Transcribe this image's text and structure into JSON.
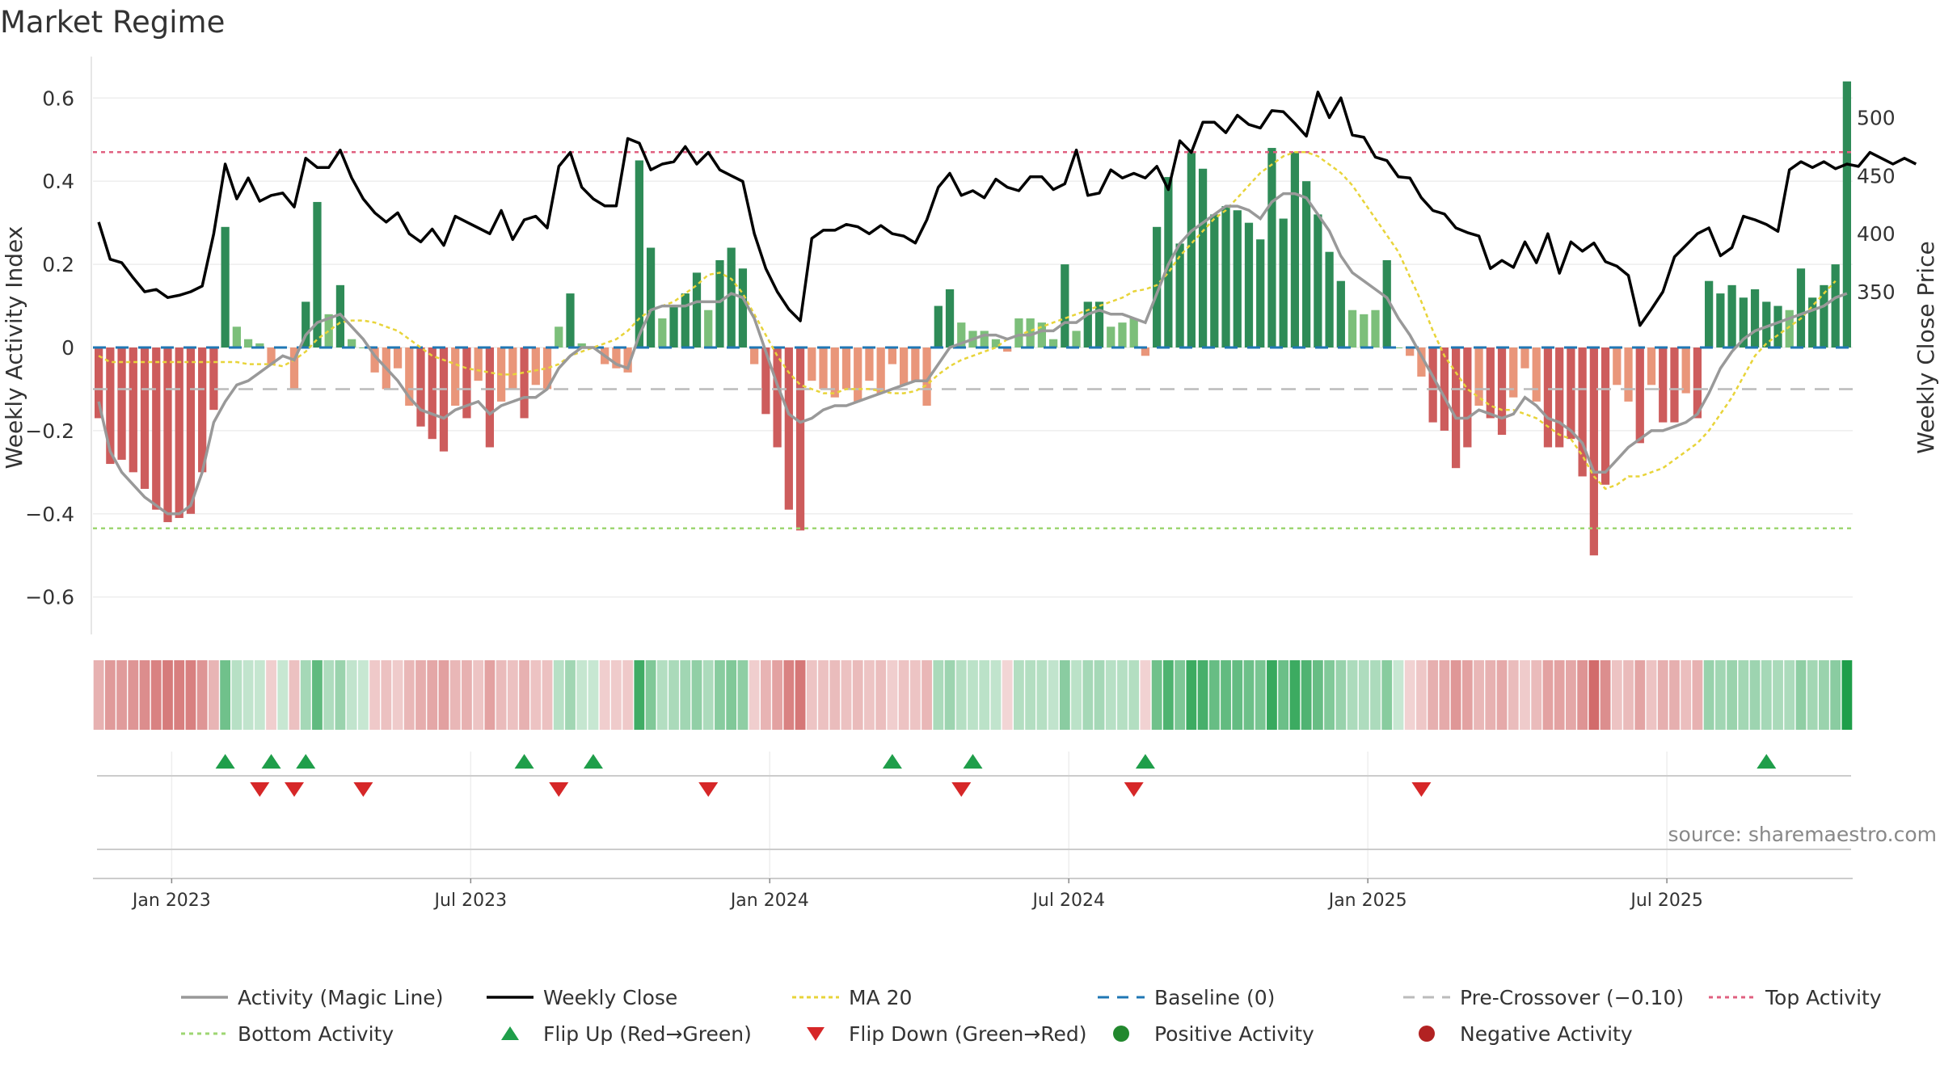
{
  "title": "Market Regime",
  "source": "source: sharemaestro.com",
  "colors": {
    "strong_green": "#2e8b57",
    "light_green": "#7cbf7a",
    "strong_red": "#cd5c5c",
    "light_red": "#e9967a",
    "activity_line": "#999999",
    "close_line": "#000000",
    "ma_line": "#e8d43a",
    "baseline": "#1f77b4",
    "pre_cross": "#bbbbbb",
    "top_line": "#e06080",
    "bottom_line": "#9ed672",
    "flip_up": "#1f9e4a",
    "flip_down": "#d62728"
  },
  "chart_data": {
    "type": "bar",
    "xlabel": "",
    "ylabel": "Weekly Activity Index",
    "y2label": "Weekly Close Price",
    "ylim": [
      -0.69,
      0.69
    ],
    "y_ticks": [
      "−0.6",
      "−0.4",
      "−0.2",
      "0",
      "0.2",
      "0.4",
      "0.6"
    ],
    "y2_ticks": [
      "350",
      "400",
      "450",
      "500"
    ],
    "y2_tick_values": [
      350,
      400,
      450,
      500
    ],
    "x_ticks": [
      "Jan 2023",
      "Jul 2023",
      "Jan 2024",
      "Jul 2024",
      "Jan 2025",
      "Jul 2025"
    ],
    "x_tick_weeks": [
      6,
      32,
      58,
      84,
      110,
      136
    ],
    "levels": {
      "baseline": 0,
      "pre_crossover": -0.1,
      "top_activity": 0.47,
      "bottom_activity": -0.435
    },
    "activity": [
      -0.17,
      -0.28,
      -0.27,
      -0.3,
      -0.34,
      -0.39,
      -0.42,
      -0.41,
      -0.4,
      -0.3,
      -0.15,
      0.29,
      0.05,
      0.02,
      0.01,
      -0.04,
      0,
      -0.1,
      0.11,
      0.35,
      0.08,
      0.15,
      0.02,
      0,
      -0.06,
      -0.1,
      -0.05,
      -0.14,
      -0.19,
      -0.22,
      -0.25,
      -0.14,
      -0.17,
      -0.08,
      -0.24,
      -0.13,
      -0.1,
      -0.17,
      -0.09,
      -0.1,
      0.05,
      0.13,
      0.01,
      0,
      -0.04,
      -0.05,
      -0.06,
      0.45,
      0.24,
      0.07,
      0.1,
      0.13,
      0.18,
      0.09,
      0.21,
      0.24,
      0.19,
      -0.04,
      -0.16,
      -0.24,
      -0.39,
      -0.44,
      -0.08,
      -0.1,
      -0.12,
      -0.1,
      -0.13,
      -0.08,
      -0.11,
      -0.04,
      -0.09,
      -0.08,
      -0.14,
      0.1,
      0.14,
      0.06,
      0.04,
      0.04,
      0.02,
      -0.01,
      0.07,
      0.07,
      0.06,
      0.02,
      0.2,
      0.04,
      0.11,
      0.11,
      0.05,
      0.06,
      0.07,
      -0.02,
      0.29,
      0.41,
      0.25,
      0.47,
      0.43,
      0.32,
      0.34,
      0.33,
      0.3,
      0.26,
      0.48,
      0.31,
      0.47,
      0.4,
      0.32,
      0.23,
      0.16,
      0.09,
      0.08,
      0.09,
      0.21,
      0,
      -0.02,
      -0.07,
      -0.18,
      -0.2,
      -0.29,
      -0.24,
      -0.14,
      -0.17,
      -0.21,
      -0.12,
      -0.05,
      -0.13,
      -0.24,
      -0.24,
      -0.22,
      -0.31,
      -0.5,
      -0.33,
      -0.09,
      -0.13,
      -0.23,
      -0.09,
      -0.18,
      -0.18,
      -0.11,
      -0.17,
      0.16,
      0.13,
      0.15,
      0.12,
      0.14,
      0.11,
      0.1,
      0.09,
      0.19,
      0.12,
      0.15,
      0.2,
      0.64
    ],
    "magic_line": [
      -0.13,
      -0.25,
      -0.3,
      -0.33,
      -0.36,
      -0.38,
      -0.4,
      -0.4,
      -0.38,
      -0.3,
      -0.18,
      -0.13,
      -0.09,
      -0.08,
      -0.06,
      -0.04,
      -0.02,
      -0.03,
      0.03,
      0.06,
      0.07,
      0.08,
      0.05,
      0.02,
      -0.02,
      -0.05,
      -0.08,
      -0.12,
      -0.15,
      -0.16,
      -0.17,
      -0.15,
      -0.14,
      -0.13,
      -0.16,
      -0.14,
      -0.13,
      -0.12,
      -0.12,
      -0.1,
      -0.05,
      -0.02,
      0,
      0,
      -0.02,
      -0.04,
      -0.05,
      0.03,
      0.09,
      0.1,
      0.1,
      0.1,
      0.11,
      0.11,
      0.11,
      0.13,
      0.12,
      0.07,
      -0.01,
      -0.09,
      -0.16,
      -0.18,
      -0.17,
      -0.15,
      -0.14,
      -0.14,
      -0.13,
      -0.12,
      -0.11,
      -0.1,
      -0.09,
      -0.08,
      -0.08,
      -0.04,
      0,
      0.01,
      0.02,
      0.03,
      0.03,
      0.02,
      0.03,
      0.03,
      0.04,
      0.04,
      0.06,
      0.06,
      0.08,
      0.09,
      0.08,
      0.08,
      0.07,
      0.06,
      0.13,
      0.2,
      0.25,
      0.28,
      0.3,
      0.32,
      0.34,
      0.34,
      0.33,
      0.31,
      0.35,
      0.37,
      0.37,
      0.36,
      0.32,
      0.28,
      0.22,
      0.18,
      0.16,
      0.14,
      0.12,
      0.07,
      0.03,
      -0.02,
      -0.07,
      -0.12,
      -0.17,
      -0.17,
      -0.15,
      -0.16,
      -0.17,
      -0.16,
      -0.12,
      -0.14,
      -0.17,
      -0.18,
      -0.2,
      -0.23,
      -0.3,
      -0.3,
      -0.27,
      -0.24,
      -0.22,
      -0.2,
      -0.2,
      -0.19,
      -0.18,
      -0.16,
      -0.11,
      -0.05,
      -0.01,
      0.02,
      0.04,
      0.05,
      0.06,
      0.07,
      0.08,
      0.09,
      0.1,
      0.12,
      0.13
    ],
    "weekly_close": [
      410,
      378,
      375,
      362,
      350,
      352,
      345,
      347,
      350,
      355,
      400,
      460,
      430,
      448,
      428,
      433,
      435,
      423,
      465,
      457,
      457,
      472,
      448,
      430,
      418,
      410,
      418,
      400,
      393,
      404,
      390,
      415,
      410,
      405,
      400,
      420,
      395,
      412,
      415,
      405,
      458,
      470,
      440,
      430,
      424,
      424,
      482,
      478,
      455,
      460,
      462,
      475,
      460,
      470,
      455,
      450,
      445,
      400,
      370,
      350,
      335,
      325,
      396,
      403,
      403,
      408,
      406,
      400,
      407,
      400,
      398,
      392,
      412,
      440,
      452,
      433,
      437,
      431,
      447,
      440,
      437,
      449,
      449,
      438,
      443,
      472,
      433,
      435,
      455,
      448,
      452,
      448,
      458,
      438,
      480,
      470,
      496,
      496,
      487,
      502,
      494,
      491,
      506,
      505,
      495,
      484,
      522,
      500,
      517,
      485,
      483,
      466,
      463,
      449,
      448,
      431,
      420,
      417,
      405,
      401,
      398,
      370,
      377,
      371,
      393,
      375,
      400,
      366,
      393,
      385,
      392,
      376,
      372,
      364,
      321,
      335,
      350,
      380,
      390,
      400,
      405,
      381,
      388,
      415,
      412,
      408,
      402,
      455,
      462,
      457,
      462,
      456,
      460,
      458,
      470,
      465,
      460,
      465,
      460
    ],
    "ma20": [
      -0.02,
      -0.035,
      -0.035,
      -0.035,
      -0.035,
      -0.035,
      -0.035,
      -0.035,
      -0.035,
      -0.035,
      -0.035,
      -0.035,
      -0.035,
      -0.04,
      -0.04,
      -0.04,
      -0.045,
      -0.03,
      -0.01,
      0.02,
      0.04,
      0.06,
      0.065,
      0.065,
      0.06,
      0.05,
      0.04,
      0.02,
      0,
      -0.02,
      -0.03,
      -0.04,
      -0.05,
      -0.055,
      -0.06,
      -0.065,
      -0.065,
      -0.06,
      -0.055,
      -0.05,
      -0.04,
      -0.02,
      -0.01,
      0,
      0.01,
      0.02,
      0.04,
      0.07,
      0.09,
      0.1,
      0.11,
      0.13,
      0.15,
      0.175,
      0.18,
      0.165,
      0.13,
      0.08,
      0.03,
      -0.02,
      -0.06,
      -0.09,
      -0.1,
      -0.11,
      -0.11,
      -0.1,
      -0.1,
      -0.1,
      -0.105,
      -0.11,
      -0.11,
      -0.105,
      -0.09,
      -0.065,
      -0.045,
      -0.03,
      -0.02,
      -0.01,
      0,
      0.02,
      0.03,
      0.04,
      0.05,
      0.06,
      0.07,
      0.08,
      0.09,
      0.1,
      0.11,
      0.12,
      0.135,
      0.14,
      0.15,
      0.18,
      0.22,
      0.25,
      0.28,
      0.31,
      0.33,
      0.36,
      0.39,
      0.42,
      0.44,
      0.46,
      0.47,
      0.47,
      0.46,
      0.44,
      0.42,
      0.39,
      0.35,
      0.31,
      0.27,
      0.23,
      0.17,
      0.11,
      0.04,
      -0.02,
      -0.06,
      -0.1,
      -0.12,
      -0.14,
      -0.15,
      -0.15,
      -0.16,
      -0.17,
      -0.19,
      -0.21,
      -0.22,
      -0.26,
      -0.31,
      -0.34,
      -0.33,
      -0.31,
      -0.31,
      -0.3,
      -0.29,
      -0.27,
      -0.25,
      -0.23,
      -0.2,
      -0.16,
      -0.12,
      -0.07,
      -0.02,
      0.01,
      0.03,
      0.05,
      0.07,
      0.1,
      0.13,
      0.16
    ],
    "flip_up_weeks": [
      11,
      15,
      18,
      37,
      43,
      69,
      76,
      91,
      145
    ],
    "flip_down_weeks": [
      14,
      17,
      23,
      40,
      53,
      75,
      90,
      115
    ]
  },
  "legend": [
    {
      "label": "Activity (Magic Line)",
      "icon": "solid-gray-line"
    },
    {
      "label": "Weekly Close",
      "icon": "solid-black-line"
    },
    {
      "label": "MA 20",
      "icon": "dotted-yellow-line"
    },
    {
      "label": "Baseline (0)",
      "icon": "dashed-blue-line"
    },
    {
      "label": "Pre-Crossover (−0.10)",
      "icon": "dashed-gray-line"
    },
    {
      "label": "Top Activity",
      "icon": "dotted-red-line"
    },
    {
      "label": "Bottom Activity",
      "icon": "dotted-green-line"
    },
    {
      "label": "Flip Up (Red→Green)",
      "icon": "green-triangle-up"
    },
    {
      "label": "Flip Down (Green→Red)",
      "icon": "red-triangle-down"
    },
    {
      "label": "Positive Activity",
      "icon": "green-dot"
    },
    {
      "label": "Negative Activity",
      "icon": "red-dot"
    }
  ]
}
